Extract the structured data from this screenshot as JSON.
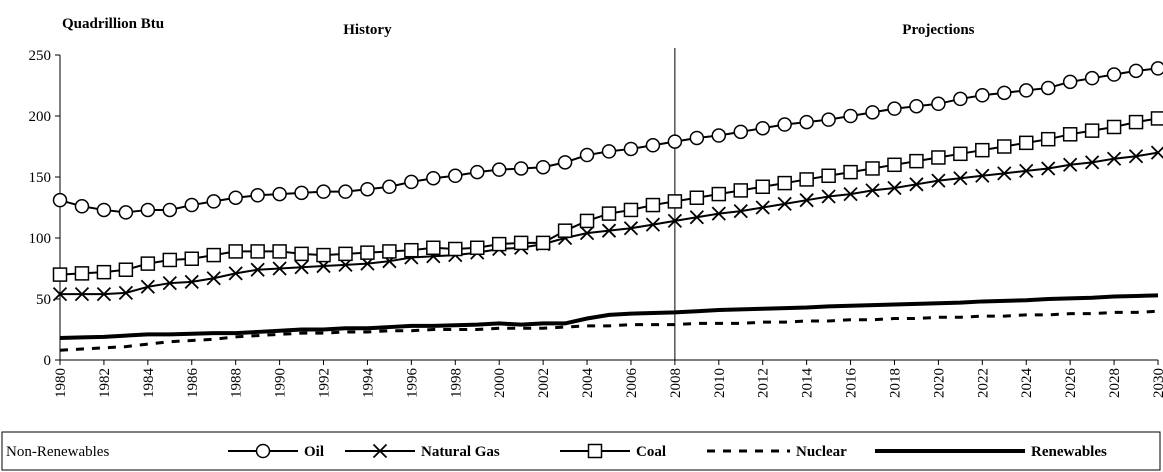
{
  "chart_data": {
    "type": "line",
    "y_label": "Quadrillion Btu",
    "annotations": [
      {
        "text": "History",
        "x": 1994
      },
      {
        "text": "Projections",
        "x": 2020
      }
    ],
    "divider_x": 2008,
    "legend_title": "Non-Renewables",
    "x": [
      1980,
      1981,
      1982,
      1983,
      1984,
      1985,
      1986,
      1987,
      1988,
      1989,
      1990,
      1991,
      1992,
      1993,
      1994,
      1995,
      1996,
      1997,
      1998,
      1999,
      2000,
      2001,
      2002,
      2003,
      2004,
      2005,
      2006,
      2007,
      2008,
      2009,
      2010,
      2011,
      2012,
      2013,
      2014,
      2015,
      2016,
      2017,
      2018,
      2019,
      2020,
      2021,
      2022,
      2023,
      2024,
      2025,
      2026,
      2027,
      2028,
      2029,
      2030
    ],
    "xlim": [
      1980,
      2030
    ],
    "xticks": [
      1980,
      1982,
      1984,
      1986,
      1988,
      1990,
      1992,
      1994,
      1996,
      1998,
      2000,
      2002,
      2004,
      2006,
      2008,
      2010,
      2012,
      2014,
      2016,
      2018,
      2020,
      2022,
      2024,
      2026,
      2028,
      2030
    ],
    "ylim": [
      0,
      250
    ],
    "yticks": [
      0,
      50,
      100,
      150,
      200,
      250
    ],
    "series": [
      {
        "name": "Oil",
        "color": "#000000",
        "marker": "circle",
        "dash": false,
        "width": 2,
        "values": [
          131,
          126,
          123,
          121,
          123,
          123,
          127,
          130,
          133,
          135,
          136,
          137,
          138,
          138,
          140,
          142,
          146,
          149,
          151,
          154,
          156,
          157,
          158,
          162,
          168,
          171,
          173,
          176,
          179,
          182,
          184,
          187,
          190,
          193,
          195,
          197,
          200,
          203,
          206,
          208,
          210,
          214,
          217,
          219,
          221,
          223,
          228,
          231,
          234,
          237,
          239
        ]
      },
      {
        "name": "Natural Gas",
        "color": "#000000",
        "marker": "x",
        "dash": false,
        "width": 2,
        "values": [
          54,
          54,
          54,
          55,
          60,
          63,
          64,
          67,
          71,
          74,
          75,
          76,
          77,
          78,
          79,
          81,
          84,
          85,
          86,
          88,
          91,
          92,
          95,
          100,
          104,
          106,
          108,
          111,
          114,
          117,
          120,
          122,
          125,
          128,
          131,
          134,
          136,
          139,
          141,
          144,
          147,
          149,
          151,
          153,
          155,
          157,
          160,
          162,
          165,
          167,
          170
        ]
      },
      {
        "name": "Coal",
        "color": "#000000",
        "marker": "square",
        "dash": false,
        "width": 2,
        "values": [
          70,
          71,
          72,
          74,
          79,
          82,
          83,
          86,
          89,
          89,
          89,
          87,
          86,
          87,
          88,
          89,
          90,
          92,
          91,
          92,
          95,
          96,
          96,
          106,
          114,
          120,
          123,
          127,
          130,
          133,
          136,
          139,
          142,
          145,
          148,
          151,
          154,
          157,
          160,
          163,
          166,
          169,
          172,
          175,
          178,
          181,
          185,
          188,
          191,
          195,
          198
        ]
      },
      {
        "name": "Nuclear",
        "color": "#000000",
        "marker": "none",
        "dash": true,
        "width": 3,
        "values": [
          8,
          9,
          10,
          11,
          13,
          15,
          16,
          17,
          19,
          20,
          21,
          22,
          22,
          23,
          23,
          24,
          24,
          25,
          25,
          25,
          26,
          26,
          26,
          27,
          28,
          28,
          29,
          29,
          29,
          30,
          30,
          30,
          31,
          31,
          32,
          32,
          33,
          33,
          34,
          34,
          35,
          35,
          36,
          36,
          37,
          37,
          38,
          38,
          39,
          39,
          40
        ]
      },
      {
        "name": "Renewables",
        "color": "#000000",
        "marker": "none",
        "dash": false,
        "width": 4,
        "values": [
          18,
          18.5,
          19,
          20,
          21,
          21,
          21.5,
          22,
          22,
          23,
          24,
          25,
          25,
          26,
          26,
          27,
          28,
          28,
          28.5,
          29,
          30,
          29,
          30,
          30,
          34,
          37,
          38,
          38.5,
          39,
          40,
          41,
          41.5,
          42,
          42.5,
          43,
          44,
          44.5,
          45,
          45.5,
          46,
          46.5,
          47,
          48,
          48.5,
          49,
          50,
          50.5,
          51,
          52,
          52.5,
          53
        ]
      }
    ]
  }
}
